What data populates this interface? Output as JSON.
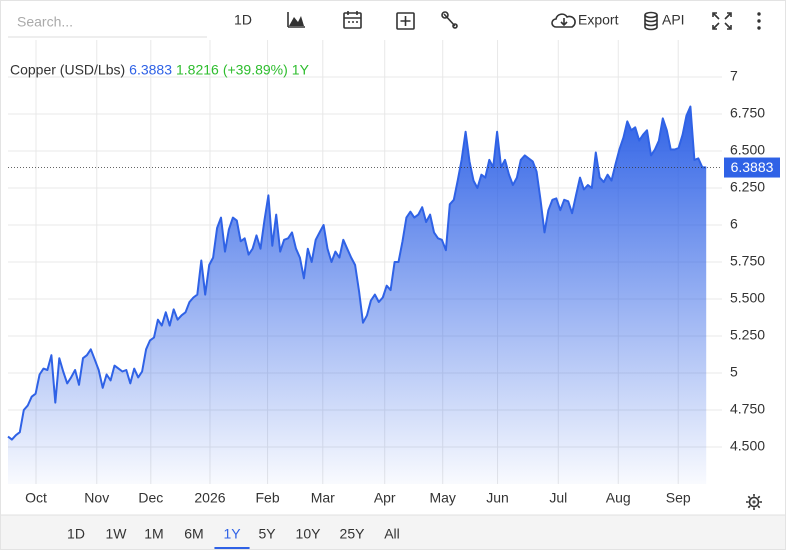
{
  "toolbar": {
    "search_placeholder": "Search...",
    "interval": "1D",
    "export": "Export",
    "api": "API"
  },
  "range_selector": {
    "options": [
      "1D",
      "1W",
      "1M",
      "6M",
      "1Y",
      "5Y",
      "10Y",
      "25Y",
      "All"
    ],
    "active": "1Y"
  },
  "chart_data": {
    "type": "area",
    "change": 1.8216,
    "change_label": "(+39.89%)",
    "series": [
      {
        "name": "Copper (USD/Lbs)",
        "color": "#2f62e6",
        "values": [
          4.57,
          4.55,
          4.58,
          4.6,
          4.75,
          4.78,
          4.84,
          4.86,
          4.99,
          5.03,
          5.02,
          5.12,
          4.8,
          5.1,
          5.01,
          4.93,
          4.97,
          5.02,
          4.92,
          5.1,
          5.12,
          5.16,
          5.09,
          5.02,
          4.9,
          4.99,
          4.95,
          5.05,
          5.03,
          5.01,
          5.02,
          4.93,
          5.03,
          4.97,
          5.01,
          5.16,
          5.22,
          5.24,
          5.36,
          5.32,
          5.41,
          5.32,
          5.43,
          5.36,
          5.39,
          5.41,
          5.48,
          5.51,
          5.53,
          5.76,
          5.53,
          5.73,
          5.78,
          5.98,
          6.05,
          5.82,
          5.97,
          6.05,
          6.03,
          5.89,
          5.91,
          5.8,
          5.84,
          5.93,
          5.84,
          6.03,
          6.2,
          5.86,
          6.07,
          5.82,
          5.9,
          5.91,
          5.95,
          5.84,
          5.78,
          5.64,
          5.84,
          5.75,
          5.9,
          5.95,
          6.0,
          5.84,
          5.75,
          5.82,
          5.78,
          5.9,
          5.84,
          5.78,
          5.73,
          5.55,
          5.34,
          5.39,
          5.49,
          5.53,
          5.48,
          5.51,
          5.59,
          5.56,
          5.75,
          5.75,
          5.89,
          6.05,
          6.09,
          6.05,
          6.07,
          6.12,
          6.02,
          6.07,
          5.95,
          5.91,
          5.9,
          5.83,
          6.14,
          6.17,
          6.3,
          6.44,
          6.63,
          6.43,
          6.3,
          6.25,
          6.34,
          6.32,
          6.44,
          6.39,
          6.63,
          6.39,
          6.44,
          6.34,
          6.27,
          6.32,
          6.44,
          6.47,
          6.45,
          6.43,
          6.36,
          6.17,
          5.95,
          6.1,
          6.17,
          6.18,
          6.1,
          6.17,
          6.16,
          6.08,
          6.2,
          6.32,
          6.24,
          6.27,
          6.25,
          6.49,
          6.32,
          6.29,
          6.34,
          6.3,
          6.41,
          6.51,
          6.59,
          6.7,
          6.64,
          6.66,
          6.57,
          6.61,
          6.64,
          6.47,
          6.51,
          6.57,
          6.72,
          6.64,
          6.51,
          6.51,
          6.52,
          6.61,
          6.74,
          6.8,
          6.44,
          6.45,
          6.39,
          6.3883
        ]
      }
    ],
    "xlim": [
      0,
      181
    ],
    "xticks": [
      {
        "value": 7.1,
        "label": "Oct"
      },
      {
        "value": 22.5,
        "label": "Nov"
      },
      {
        "value": 36.2,
        "label": "Dec"
      },
      {
        "value": 51.2,
        "label": "2026"
      },
      {
        "value": 65.8,
        "label": "Feb"
      },
      {
        "value": 79.8,
        "label": "Mar"
      },
      {
        "value": 95.5,
        "label": "Apr"
      },
      {
        "value": 110.2,
        "label": "May"
      },
      {
        "value": 124.1,
        "label": "Jun"
      },
      {
        "value": 139.5,
        "label": "Jul"
      },
      {
        "value": 154.7,
        "label": "Aug"
      },
      {
        "value": 169.9,
        "label": "Sep"
      }
    ],
    "ylim": [
      4.25,
      7.25
    ],
    "yticks": [
      {
        "value": 4.5,
        "label": "4.500"
      },
      {
        "value": 4.75,
        "label": "4.750"
      },
      5,
      {
        "value": 5.25,
        "label": "5.250"
      },
      {
        "value": 5.5,
        "label": "5.500"
      },
      {
        "value": 5.75,
        "label": "5.750"
      },
      6,
      {
        "value": 6.25,
        "label": "6.250"
      },
      {
        "value": 6.5,
        "label": "6.500"
      },
      {
        "value": 6.75,
        "label": "6.750"
      },
      7
    ],
    "grid": true
  }
}
